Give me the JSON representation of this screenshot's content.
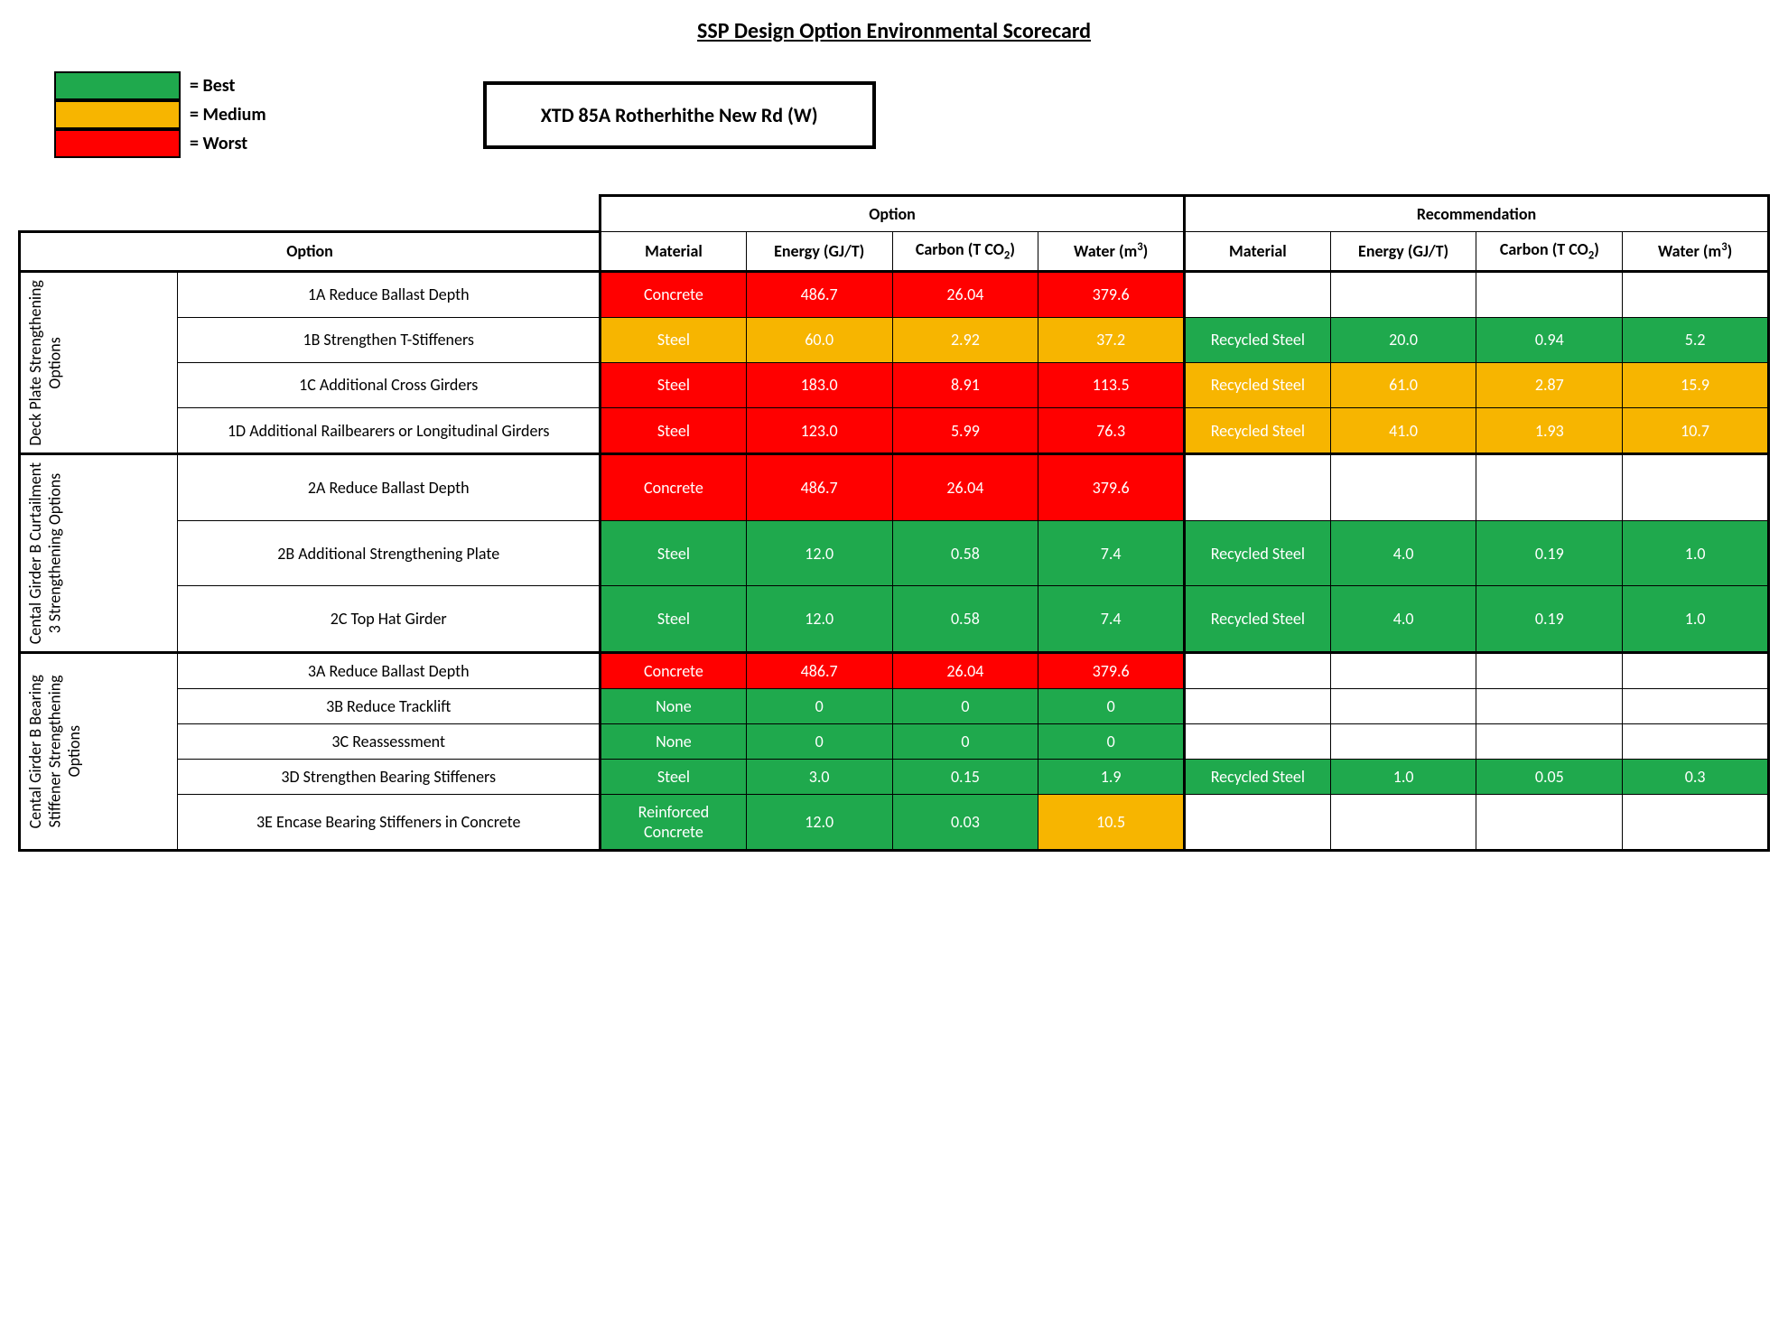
{
  "title": "SSP Design Option Environmental Scorecard",
  "project_name": "XTD 85A Rotherhithe New Rd (W)",
  "colors": {
    "best": "#1fa94d",
    "medium": "#f7b500",
    "worst": "#ff0000",
    "border": "#000000",
    "text_on_fill": "#ffffff"
  },
  "legend": [
    {
      "color_key": "best",
      "label": "= Best"
    },
    {
      "color_key": "medium",
      "label": "= Medium"
    },
    {
      "color_key": "worst",
      "label": "= Worst"
    }
  ],
  "headers": {
    "option_group": "Option",
    "option_section": "Option",
    "recommendation_section": "Recommendation",
    "material": "Material",
    "energy": "Energy (GJ/T)",
    "carbon_pre": "Carbon (T CO",
    "carbon_sub": "2",
    "carbon_post": ")",
    "water_pre": "Water (m",
    "water_sup": "3",
    "water_post": ")"
  },
  "groups": [
    {
      "label": "Deck Plate Strengthening Options",
      "rows": [
        {
          "name": "1A Reduce Ballast Depth",
          "opt": {
            "material": "Concrete",
            "energy": "486.7",
            "carbon": "26.04",
            "water": "379.6",
            "rating": "worst"
          },
          "rec": null
        },
        {
          "name": "1B Strengthen T-Stiffeners",
          "opt": {
            "material": "Steel",
            "energy": "60.0",
            "carbon": "2.92",
            "water": "37.2",
            "rating": "medium"
          },
          "rec": {
            "material": "Recycled Steel",
            "energy": "20.0",
            "carbon": "0.94",
            "water": "5.2",
            "rating": "best"
          }
        },
        {
          "name": "1C Additional Cross Girders",
          "opt": {
            "material": "Steel",
            "energy": "183.0",
            "carbon": "8.91",
            "water": "113.5",
            "rating": "worst"
          },
          "rec": {
            "material": "Recycled Steel",
            "energy": "61.0",
            "carbon": "2.87",
            "water": "15.9",
            "rating": "medium"
          }
        },
        {
          "name": "1D Additional Railbearers or Longitudinal Girders",
          "opt": {
            "material": "Steel",
            "energy": "123.0",
            "carbon": "5.99",
            "water": "76.3",
            "rating": "worst"
          },
          "rec": {
            "material": "Recycled Steel",
            "energy": "41.0",
            "carbon": "1.93",
            "water": "10.7",
            "rating": "medium"
          }
        }
      ]
    },
    {
      "label": "Cental Girder B Curtailment 3 Strengthening Options",
      "rows": [
        {
          "name": "2A Reduce Ballast Depth",
          "opt": {
            "material": "Concrete",
            "energy": "486.7",
            "carbon": "26.04",
            "water": "379.6",
            "rating": "worst"
          },
          "rec": null
        },
        {
          "name": "2B Additional Strengthening Plate",
          "opt": {
            "material": "Steel",
            "energy": "12.0",
            "carbon": "0.58",
            "water": "7.4",
            "rating": "best"
          },
          "rec": {
            "material": "Recycled Steel",
            "energy": "4.0",
            "carbon": "0.19",
            "water": "1.0",
            "rating": "best"
          }
        },
        {
          "name": "2C Top Hat Girder",
          "opt": {
            "material": "Steel",
            "energy": "12.0",
            "carbon": "0.58",
            "water": "7.4",
            "rating": "best"
          },
          "rec": {
            "material": "Recycled Steel",
            "energy": "4.0",
            "carbon": "0.19",
            "water": "1.0",
            "rating": "best"
          }
        }
      ]
    },
    {
      "label": "Cental Girder B Bearing Stiffener Strengthening Options",
      "rows": [
        {
          "name": "3A Reduce Ballast Depth",
          "opt": {
            "material": "Concrete",
            "energy": "486.7",
            "carbon": "26.04",
            "water": "379.6",
            "rating": "worst"
          },
          "rec": null
        },
        {
          "name": "3B Reduce Tracklift",
          "opt": {
            "material": "None",
            "energy": "0",
            "carbon": "0",
            "water": "0",
            "rating": "best"
          },
          "rec": null
        },
        {
          "name": "3C Reassessment",
          "opt": {
            "material": "None",
            "energy": "0",
            "carbon": "0",
            "water": "0",
            "rating": "best"
          },
          "rec": null
        },
        {
          "name": "3D Strengthen Bearing Stiffeners",
          "opt": {
            "material": "Steel",
            "energy": "3.0",
            "carbon": "0.15",
            "water": "1.9",
            "rating": "best"
          },
          "rec": {
            "material": "Recycled Steel",
            "energy": "1.0",
            "carbon": "0.05",
            "water": "0.3",
            "rating": "best"
          }
        },
        {
          "name": "3E Encase Bearing Stiffeners in Concrete",
          "opt_cells": [
            {
              "val": "Reinforced Concrete",
              "rating": "best"
            },
            {
              "val": "12.0",
              "rating": "best"
            },
            {
              "val": "0.03",
              "rating": "best"
            },
            {
              "val": "10.5",
              "rating": "medium"
            }
          ],
          "rec": null
        }
      ]
    }
  ]
}
